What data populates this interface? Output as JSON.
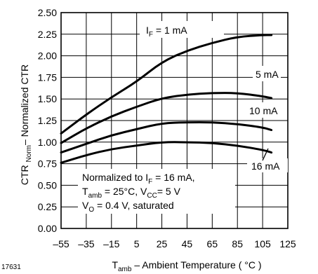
{
  "figure_id": "17631",
  "colors": {
    "line": "#000000",
    "background": "#ffffff"
  },
  "chart_data": {
    "type": "line",
    "grid": true,
    "legend": "none",
    "xlim": [
      -55,
      125
    ],
    "ylim": [
      0,
      2.5
    ],
    "x_ticks": [
      -55,
      -35,
      -15,
      5,
      25,
      45,
      65,
      85,
      105,
      125
    ],
    "y_ticks": [
      "0.00",
      "0.25",
      "0.50",
      "0.75",
      "1.00",
      "1.25",
      "1.50",
      "1.75",
      "2.00",
      "2.25",
      "2.50"
    ],
    "y_tick_values": [
      0,
      0.25,
      0.5,
      0.75,
      1.0,
      1.25,
      1.5,
      1.75,
      2.0,
      2.25,
      2.5
    ],
    "xlabel": {
      "main": "T",
      "sub": "amb",
      "rest": " – Ambient Temperature ( °C )"
    },
    "ylabel": {
      "main": "CTR ",
      "sub": "Norm",
      "rest": "– Normalized CTR"
    },
    "annotation": {
      "line1": {
        "pre": "Normalized to I",
        "sub": "F",
        "post": " = 16 mA,"
      },
      "line2": {
        "pre": "T",
        "sub": "amb",
        "mid": " = 25°C, V",
        "sub2": "CC",
        "post": "= 5 V"
      },
      "line3": {
        "pre": "V",
        "sub": "O",
        "post": " = 0.4 V, saturated"
      }
    },
    "series": [
      {
        "name": {
          "pre": "I",
          "sub": "F",
          "post": " =  1 mA"
        },
        "x": [
          -55,
          -35,
          -15,
          5,
          25,
          45,
          65,
          85,
          105,
          112
        ],
        "y": [
          1.1,
          1.32,
          1.52,
          1.7,
          1.93,
          2.06,
          2.15,
          2.22,
          2.24,
          2.24
        ]
      },
      {
        "name": {
          "pre": "5 mA",
          "sub": "",
          "post": ""
        },
        "x": [
          -55,
          -35,
          -15,
          5,
          25,
          45,
          65,
          85,
          105,
          112
        ],
        "y": [
          0.99,
          1.16,
          1.3,
          1.41,
          1.51,
          1.55,
          1.57,
          1.57,
          1.53,
          1.51
        ]
      },
      {
        "name": {
          "pre": "10 mA",
          "sub": "",
          "post": ""
        },
        "x": [
          -55,
          -35,
          -15,
          5,
          25,
          45,
          65,
          85,
          105,
          112
        ],
        "y": [
          0.88,
          0.98,
          1.08,
          1.15,
          1.22,
          1.23,
          1.23,
          1.21,
          1.17,
          1.14
        ]
      },
      {
        "name": {
          "pre": "16 mA",
          "sub": "",
          "post": ""
        },
        "x": [
          -55,
          -35,
          -15,
          5,
          25,
          45,
          65,
          85,
          105,
          112
        ],
        "y": [
          0.76,
          0.85,
          0.92,
          0.96,
          1.0,
          1.0,
          0.99,
          0.96,
          0.91,
          0.88
        ]
      }
    ]
  }
}
